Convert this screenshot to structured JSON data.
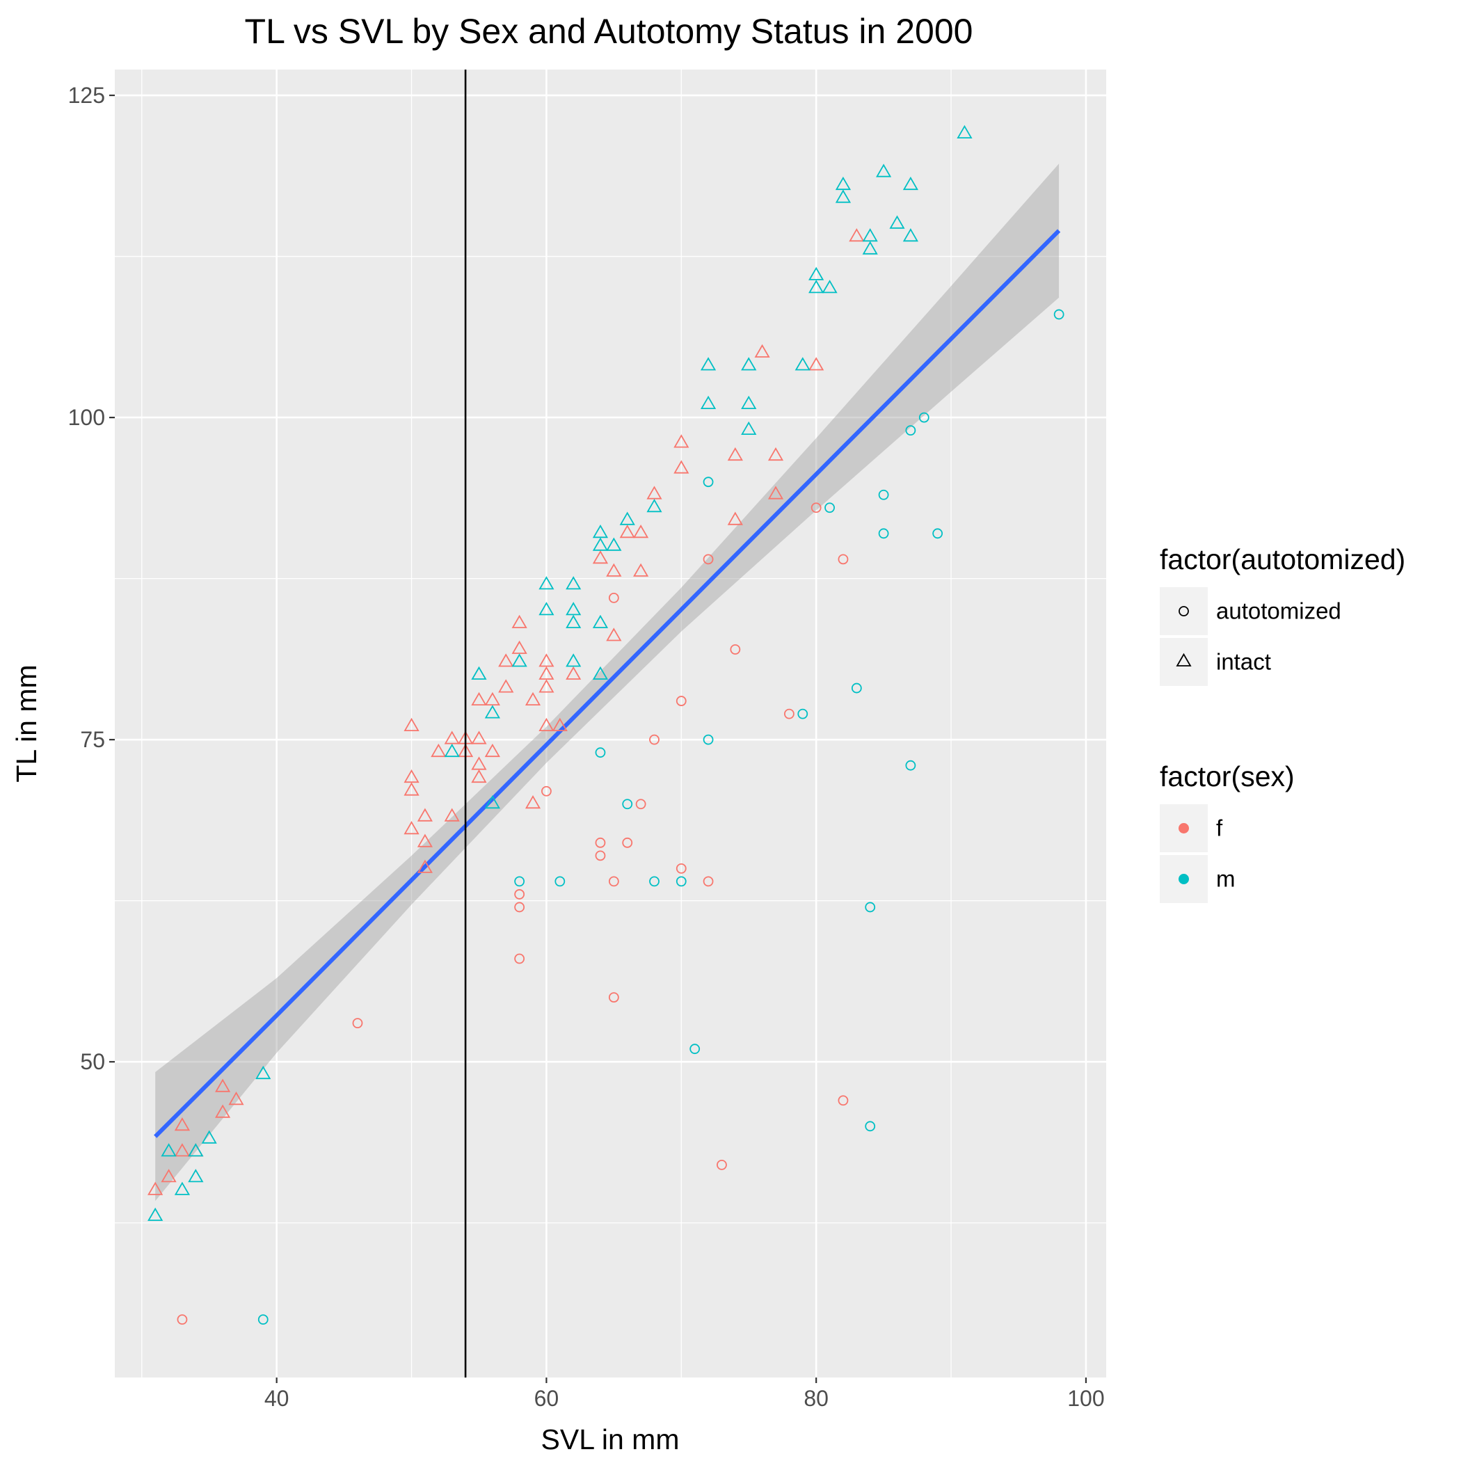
{
  "chart_data": {
    "type": "scatter",
    "title": "TL vs SVL by Sex and Autotomy Status in 2000",
    "xlabel": "SVL in mm",
    "ylabel": "TL in mm",
    "xlim": [
      28,
      101.5
    ],
    "ylim": [
      25.5,
      127
    ],
    "x_ticks": [
      40,
      60,
      80,
      100
    ],
    "y_ticks": [
      50,
      75,
      100,
      125
    ],
    "grid": true,
    "background_color": "#ebebeb",
    "grid_color": "#ffffff",
    "vline": {
      "x": 54,
      "color": "#000000"
    },
    "fit": {
      "method": "lm",
      "color": "#3366ff",
      "band_color": "#999999",
      "points": [
        [
          31,
          44.2,
          39.2,
          49.2
        ],
        [
          40,
          53.6,
          50.7,
          56.5
        ],
        [
          50,
          64.1,
          62.2,
          66.0
        ],
        [
          60,
          74.6,
          73.2,
          76.0
        ],
        [
          70,
          85.1,
          83.4,
          86.8
        ],
        [
          80,
          95.6,
          92.8,
          98.4
        ],
        [
          90,
          106.1,
          102.0,
          110.2
        ],
        [
          98,
          114.5,
          109.3,
          119.7
        ]
      ]
    },
    "legends": [
      {
        "title": "factor(autotomized)",
        "entries": [
          {
            "label": "autotomized",
            "shape": "circle"
          },
          {
            "label": "intact",
            "shape": "triangle"
          }
        ]
      },
      {
        "title": "factor(sex)",
        "entries": [
          {
            "label": "f",
            "color": "#f8766d"
          },
          {
            "label": "m",
            "color": "#00bfc4"
          }
        ]
      }
    ],
    "legend_position": "right",
    "series": [
      {
        "sex": "f",
        "autotomy": "intact",
        "color": "#f8766d",
        "shape": "triangle",
        "points": [
          [
            31,
            40
          ],
          [
            32,
            41
          ],
          [
            33,
            45
          ],
          [
            33,
            43
          ],
          [
            34,
            43
          ],
          [
            36,
            48
          ],
          [
            36,
            46
          ],
          [
            37,
            47
          ],
          [
            50,
            76
          ],
          [
            50,
            72
          ],
          [
            50,
            71
          ],
          [
            50,
            68
          ],
          [
            51,
            69
          ],
          [
            51,
            67
          ],
          [
            51,
            65
          ],
          [
            52,
            74
          ],
          [
            53,
            75
          ],
          [
            53,
            69
          ],
          [
            54,
            75
          ],
          [
            54,
            74
          ],
          [
            55,
            78
          ],
          [
            55,
            75
          ],
          [
            55,
            73
          ],
          [
            55,
            72
          ],
          [
            56,
            78
          ],
          [
            56,
            74
          ],
          [
            57,
            81
          ],
          [
            57,
            79
          ],
          [
            58,
            84
          ],
          [
            58,
            82
          ],
          [
            59,
            78
          ],
          [
            59,
            70
          ],
          [
            60,
            81
          ],
          [
            60,
            80
          ],
          [
            60,
            79
          ],
          [
            60,
            76
          ],
          [
            61,
            76
          ],
          [
            62,
            80
          ],
          [
            64,
            89
          ],
          [
            65,
            88
          ],
          [
            65,
            83
          ],
          [
            66,
            91
          ],
          [
            67,
            91
          ],
          [
            67,
            88
          ],
          [
            68,
            94
          ],
          [
            70,
            98
          ],
          [
            70,
            96
          ],
          [
            74,
            97
          ],
          [
            74,
            92
          ],
          [
            76,
            105
          ],
          [
            77,
            97
          ],
          [
            77,
            94
          ],
          [
            80,
            104
          ],
          [
            83,
            114
          ]
        ]
      },
      {
        "sex": "m",
        "autotomy": "intact",
        "color": "#00bfc4",
        "shape": "triangle",
        "points": [
          [
            31,
            38
          ],
          [
            32,
            43
          ],
          [
            33,
            40
          ],
          [
            34,
            43
          ],
          [
            34,
            41
          ],
          [
            35,
            44
          ],
          [
            39,
            49
          ],
          [
            53,
            74
          ],
          [
            55,
            80
          ],
          [
            56,
            77
          ],
          [
            56,
            70
          ],
          [
            58,
            81
          ],
          [
            60,
            87
          ],
          [
            60,
            85
          ],
          [
            62,
            87
          ],
          [
            62,
            85
          ],
          [
            62,
            84
          ],
          [
            62,
            81
          ],
          [
            64,
            91
          ],
          [
            64,
            90
          ],
          [
            64,
            84
          ],
          [
            64,
            80
          ],
          [
            65,
            90
          ],
          [
            66,
            92
          ],
          [
            68,
            93
          ],
          [
            72,
            104
          ],
          [
            72,
            101
          ],
          [
            75,
            104
          ],
          [
            75,
            101
          ],
          [
            75,
            99
          ],
          [
            79,
            104
          ],
          [
            80,
            111
          ],
          [
            80,
            110
          ],
          [
            81,
            110
          ],
          [
            82,
            118
          ],
          [
            82,
            117
          ],
          [
            84,
            114
          ],
          [
            84,
            113
          ],
          [
            85,
            119
          ],
          [
            86,
            115
          ],
          [
            87,
            118
          ],
          [
            87,
            114
          ],
          [
            91,
            122
          ]
        ]
      },
      {
        "sex": "f",
        "autotomy": "autotomized",
        "color": "#f8766d",
        "shape": "circle",
        "points": [
          [
            33,
            30
          ],
          [
            46,
            53
          ],
          [
            58,
            63
          ],
          [
            58,
            62
          ],
          [
            58,
            58
          ],
          [
            60,
            71
          ],
          [
            64,
            67
          ],
          [
            64,
            66
          ],
          [
            65,
            86
          ],
          [
            65,
            64
          ],
          [
            65,
            55
          ],
          [
            66,
            67
          ],
          [
            67,
            70
          ],
          [
            68,
            75
          ],
          [
            70,
            78
          ],
          [
            70,
            65
          ],
          [
            72,
            89
          ],
          [
            72,
            64
          ],
          [
            73,
            42
          ],
          [
            74,
            82
          ],
          [
            78,
            77
          ],
          [
            80,
            93
          ],
          [
            82,
            89
          ],
          [
            82,
            47
          ]
        ]
      },
      {
        "sex": "m",
        "autotomy": "autotomized",
        "color": "#00bfc4",
        "shape": "circle",
        "points": [
          [
            39,
            30
          ],
          [
            58,
            64
          ],
          [
            61,
            64
          ],
          [
            64,
            74
          ],
          [
            66,
            70
          ],
          [
            68,
            64
          ],
          [
            70,
            64
          ],
          [
            71,
            51
          ],
          [
            72,
            95
          ],
          [
            72,
            75
          ],
          [
            79,
            77
          ],
          [
            81,
            93
          ],
          [
            83,
            79
          ],
          [
            84,
            62
          ],
          [
            84,
            45
          ],
          [
            85,
            94
          ],
          [
            85,
            91
          ],
          [
            87,
            99
          ],
          [
            87,
            73
          ],
          [
            88,
            100
          ],
          [
            89,
            91
          ],
          [
            98,
            108
          ]
        ]
      }
    ]
  }
}
